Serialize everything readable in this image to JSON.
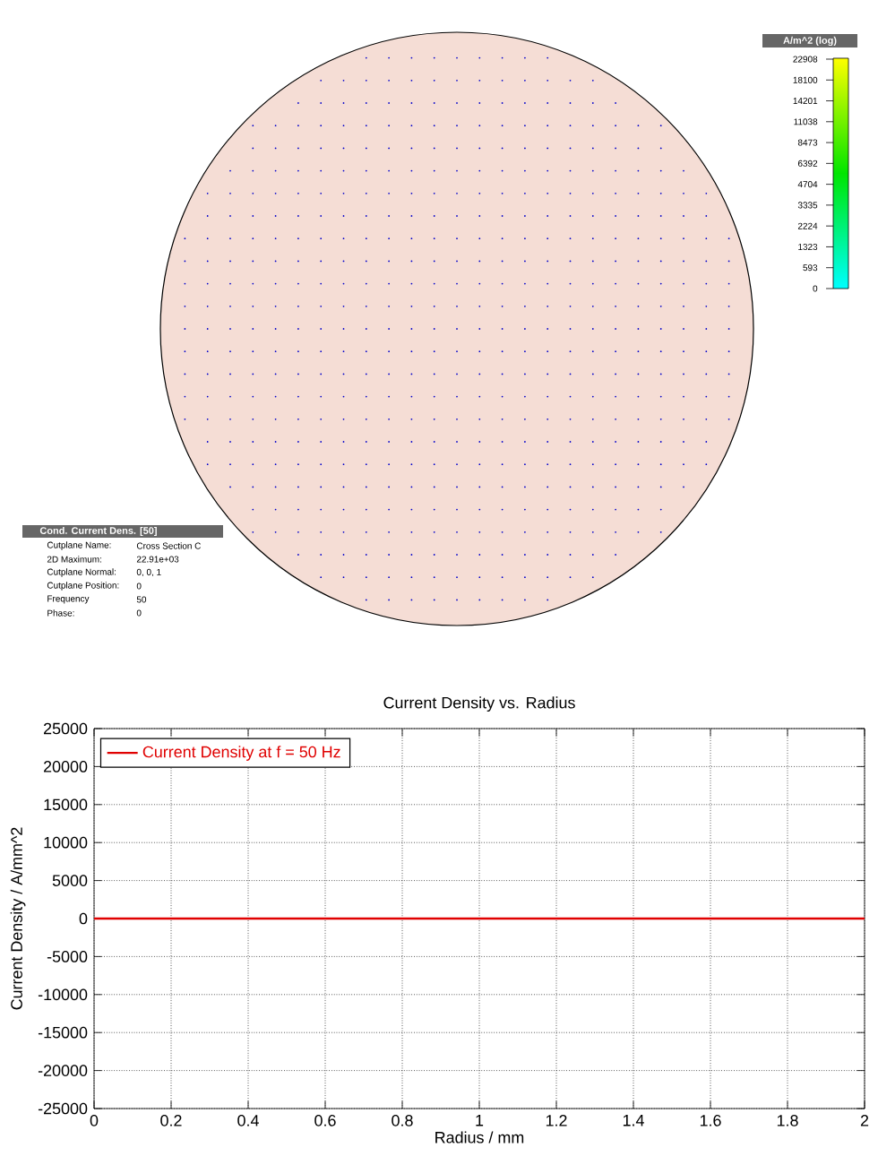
{
  "chart_data": [
    {
      "type": "other",
      "title": "Cond. Current Dens. [50]",
      "clabel": "A/m^2 (log)",
      "annotations": [
        "Cutplane Name:",
        "Cross Section C",
        "2D Maximum:",
        "22.91e+03",
        "Cutplane Normal:",
        "0, 0, 1",
        "Cutplane Position:",
        "0",
        "Frequency",
        "50",
        "Phase:",
        "0",
        "22908",
        "18100",
        "14201",
        "11038",
        "8473",
        "6392",
        "4704",
        "3335",
        "2224",
        "1323",
        "593",
        "0"
      ]
    },
    {
      "type": "line",
      "title": "Current Density vs. Radius",
      "xlabel": "Radius / mm",
      "ylabel": "Current Density / A/mm^2",
      "x": [
        0,
        2
      ],
      "series": [
        {
          "name": "Current Density at f = 50 Hz",
          "color": "#e00000",
          "values": [
            0,
            0
          ]
        }
      ],
      "xlim": [
        0,
        2
      ],
      "ylim": [
        -25000,
        25000
      ],
      "xticks": [
        0,
        0.2,
        0.4,
        0.6,
        0.8,
        1,
        1.2,
        1.4,
        1.6,
        1.8,
        2
      ],
      "yticks": [
        -25000,
        -20000,
        -15000,
        -10000,
        -5000,
        0,
        5000,
        10000,
        15000,
        20000,
        25000
      ],
      "grid": true,
      "legend": "top left",
      "line_style": "solid",
      "marker": "none"
    }
  ]
}
